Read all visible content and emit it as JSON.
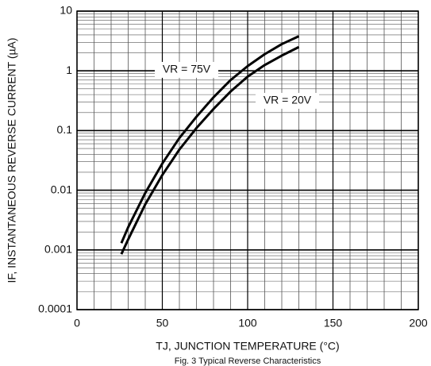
{
  "chart_data": {
    "type": "line",
    "xlabel": "TJ, JUNCTION TEMPERATURE (°C)",
    "ylabel": "IF, INSTANTANEOUS REVERSE CURRENT (µA)",
    "caption": "Fig. 3 Typical Reverse Characteristics",
    "x": [
      26,
      30,
      40,
      50,
      60,
      70,
      80,
      90,
      100,
      110,
      120,
      130
    ],
    "series": [
      {
        "name": "VR = 75V",
        "color": "#000000",
        "values": [
          0.0013,
          0.0024,
          0.009,
          0.028,
          0.075,
          0.17,
          0.36,
          0.7,
          1.2,
          1.9,
          2.8,
          3.8
        ]
      },
      {
        "name": "VR = 20V",
        "color": "#000000",
        "values": [
          0.00085,
          0.0015,
          0.0058,
          0.018,
          0.048,
          0.11,
          0.23,
          0.45,
          0.8,
          1.25,
          1.8,
          2.5
        ]
      }
    ],
    "xlim": [
      0,
      200
    ],
    "xticks": [
      0,
      50,
      100,
      150,
      200
    ],
    "ylim": [
      0.0001,
      10
    ],
    "yticks": [
      0.0001,
      0.001,
      0.01,
      0.1,
      1,
      10
    ],
    "ylog": true,
    "grid": true
  }
}
